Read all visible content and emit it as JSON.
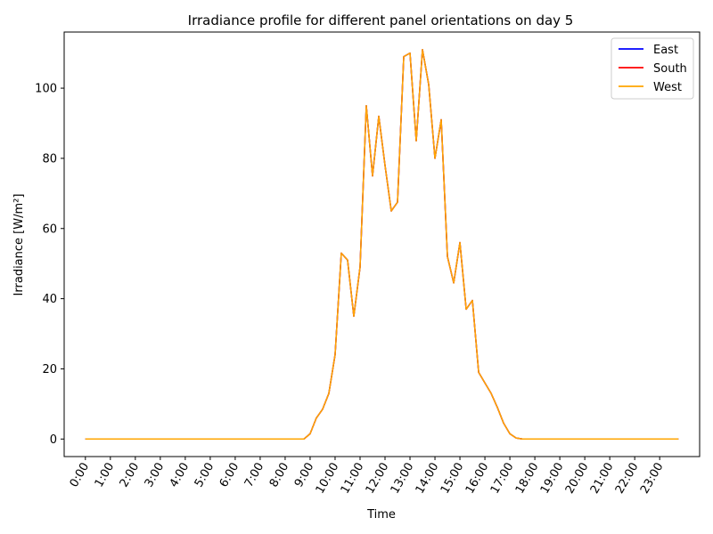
{
  "chart_data": {
    "type": "line",
    "title": "Irradiance profile for different panel orientations on day 5",
    "xlabel": "Time",
    "ylabel": "Irradiance [W/m²]",
    "x_tick_labels": [
      "0:00",
      "1:00",
      "2:00",
      "3:00",
      "4:00",
      "5:00",
      "6:00",
      "7:00",
      "8:00",
      "9:00",
      "10:00",
      "11:00",
      "12:00",
      "13:00",
      "14:00",
      "15:00",
      "16:00",
      "17:00",
      "18:00",
      "19:00",
      "20:00",
      "21:00",
      "22:00",
      "23:00"
    ],
    "y_ticks": [
      0,
      20,
      40,
      60,
      80,
      100
    ],
    "ylim": [
      -5,
      116
    ],
    "xlim_hours": [
      -0.85,
      24.6
    ],
    "x_step_minutes": 15,
    "grid": false,
    "legend_position": "top-right",
    "series": [
      {
        "name": "East",
        "color": "#0000ff"
      },
      {
        "name": "South",
        "color": "#ff0000"
      },
      {
        "name": "West",
        "color": "#ffa500"
      }
    ],
    "values": [
      0,
      0,
      0,
      0,
      0,
      0,
      0,
      0,
      0,
      0,
      0,
      0,
      0,
      0,
      0,
      0,
      0,
      0,
      0,
      0,
      0,
      0,
      0,
      0,
      0,
      0,
      0,
      0,
      0,
      0,
      0,
      0,
      0,
      0,
      0,
      0,
      1.5,
      6,
      8.5,
      13,
      24,
      53,
      51,
      35,
      49,
      95,
      75,
      92,
      78,
      65,
      67.5,
      109,
      110,
      85,
      111,
      101,
      80,
      91,
      52,
      44.5,
      56,
      37,
      39.5,
      19,
      16,
      13,
      9,
      4.5,
      1.5,
      0.3,
      0,
      0,
      0,
      0,
      0,
      0,
      0,
      0,
      0,
      0,
      0,
      0,
      0,
      0,
      0,
      0,
      0,
      0,
      0,
      0,
      0,
      0,
      0,
      0,
      0,
      0
    ]
  }
}
